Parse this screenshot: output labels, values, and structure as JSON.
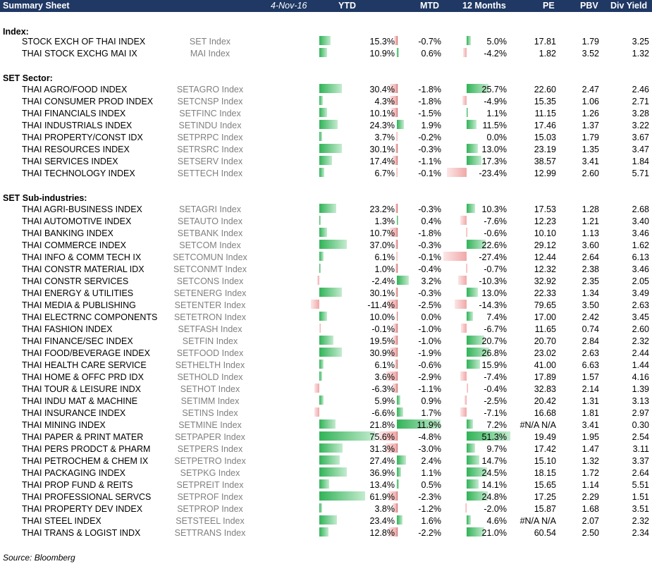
{
  "header": {
    "title": "Summary Sheet",
    "date": "4-Nov-16",
    "columns": [
      "YTD",
      "MTD",
      "12 Months",
      "PE",
      "PBV",
      "Div Yield"
    ]
  },
  "sections": [
    {
      "label": "Index:",
      "rows": [
        {
          "name": "STOCK EXCH OF THAI INDEX",
          "ticker": "SET Index",
          "ytd": 15.3,
          "mtd": -0.7,
          "m12": 5.0,
          "pe": "17.81",
          "pbv": "1.79",
          "dy": "3.25"
        },
        {
          "name": "THAI STOCK EXCHG MAI IX",
          "ticker": "MAI Index",
          "ytd": 10.9,
          "mtd": 0.6,
          "m12": -4.2,
          "pe": "1.82",
          "pbv": "3.52",
          "dy": "1.32"
        }
      ]
    },
    {
      "label": "SET Sector:",
      "rows": [
        {
          "name": "THAI AGRO/FOOD INDEX",
          "ticker": "SETAGRO Index",
          "ytd": 30.4,
          "mtd": -1.8,
          "m12": 25.7,
          "pe": "22.60",
          "pbv": "2.47",
          "dy": "2.46"
        },
        {
          "name": "THAI CONSUMER PROD INDEX",
          "ticker": "SETCNSP Index",
          "ytd": 4.3,
          "mtd": -1.8,
          "m12": -4.9,
          "pe": "15.35",
          "pbv": "1.06",
          "dy": "2.71"
        },
        {
          "name": "THAI FINANCIALS INDEX",
          "ticker": "SETFINC Index",
          "ytd": 10.1,
          "mtd": -1.5,
          "m12": 1.1,
          "pe": "11.15",
          "pbv": "1.26",
          "dy": "3.28"
        },
        {
          "name": "THAI INDUSTRIALS INDEX",
          "ticker": "SETINDU Index",
          "ytd": 24.3,
          "mtd": 1.9,
          "m12": 11.5,
          "pe": "17.46",
          "pbv": "1.37",
          "dy": "3.22"
        },
        {
          "name": "THAI PROPERTY/CONST IDX",
          "ticker": "SETPRPC Index",
          "ytd": 3.7,
          "mtd": -0.2,
          "m12": 0.0,
          "pe": "15.03",
          "pbv": "1.79",
          "dy": "3.67"
        },
        {
          "name": "THAI RESOURCES INDEX",
          "ticker": "SETRSRC Index",
          "ytd": 30.1,
          "mtd": -0.3,
          "m12": 13.0,
          "pe": "23.19",
          "pbv": "1.35",
          "dy": "3.47"
        },
        {
          "name": "THAI SERVICES INDEX",
          "ticker": "SETSERV Index",
          "ytd": 17.4,
          "mtd": -1.1,
          "m12": 17.3,
          "pe": "38.57",
          "pbv": "3.41",
          "dy": "1.84"
        },
        {
          "name": "THAI TECHNOLOGY INDEX",
          "ticker": "SETTECH Index",
          "ytd": 6.7,
          "mtd": -0.1,
          "m12": -23.4,
          "pe": "12.99",
          "pbv": "2.60",
          "dy": "5.71"
        }
      ]
    },
    {
      "label": "SET Sub-industries:",
      "rows": [
        {
          "name": "THAI AGRI-BUSINESS INDEX",
          "ticker": "SETAGRI Index",
          "ytd": 23.2,
          "mtd": -0.3,
          "m12": 10.3,
          "pe": "17.53",
          "pbv": "1.28",
          "dy": "2.68"
        },
        {
          "name": "THAI AUTOMOTIVE INDEX",
          "ticker": "SETAUTO Index",
          "ytd": 1.3,
          "mtd": 0.4,
          "m12": -7.6,
          "pe": "12.23",
          "pbv": "1.21",
          "dy": "3.40"
        },
        {
          "name": "THAI BANKING INDEX",
          "ticker": "SETBANK Index",
          "ytd": 10.7,
          "mtd": -1.8,
          "m12": -0.6,
          "pe": "10.10",
          "pbv": "1.13",
          "dy": "3.46"
        },
        {
          "name": "THAI COMMERCE INDEX",
          "ticker": "SETCOM Index",
          "ytd": 37.0,
          "mtd": -0.3,
          "m12": 22.6,
          "pe": "29.12",
          "pbv": "3.60",
          "dy": "1.62"
        },
        {
          "name": "THAI INFO & COMM TECH IX",
          "ticker": "SETCOMUN Index",
          "ytd": 6.1,
          "mtd": -0.1,
          "m12": -27.4,
          "pe": "12.44",
          "pbv": "2.64",
          "dy": "6.13"
        },
        {
          "name": "THAI CONSTR MATERIAL IDX",
          "ticker": "SETCONMT Index",
          "ytd": 1.0,
          "mtd": -0.4,
          "m12": -0.7,
          "pe": "12.32",
          "pbv": "2.38",
          "dy": "3.46"
        },
        {
          "name": "THAI CONSTR SERVICES",
          "ticker": "SETCONS Index",
          "ytd": -2.4,
          "mtd": 3.2,
          "m12": -10.3,
          "pe": "32.92",
          "pbv": "2.35",
          "dy": "2.05"
        },
        {
          "name": "THAI ENERGY & UTILITIES",
          "ticker": "SETENERG Index",
          "ytd": 30.1,
          "mtd": -0.3,
          "m12": 13.0,
          "pe": "22.33",
          "pbv": "1.34",
          "dy": "3.49"
        },
        {
          "name": "THAI MEDIA & PUBLISHING",
          "ticker": "SETENTER Index",
          "ytd": -11.4,
          "mtd": -2.5,
          "m12": -14.3,
          "pe": "79.65",
          "pbv": "3.50",
          "dy": "2.63"
        },
        {
          "name": "THAI ELECTRNC COMPONENTS",
          "ticker": "SETETRON Index",
          "ytd": 10.0,
          "mtd": 0.0,
          "m12": 7.4,
          "pe": "17.00",
          "pbv": "2.42",
          "dy": "3.45"
        },
        {
          "name": "THAI FASHION INDEX",
          "ticker": "SETFASH Index",
          "ytd": -0.1,
          "mtd": -1.0,
          "m12": -6.7,
          "pe": "11.65",
          "pbv": "0.74",
          "dy": "2.60"
        },
        {
          "name": "THAI FINANCE/SEC INDEX",
          "ticker": "SETFIN Index",
          "ytd": 19.5,
          "mtd": -1.0,
          "m12": 20.7,
          "pe": "20.70",
          "pbv": "2.84",
          "dy": "2.32"
        },
        {
          "name": "THAI FOOD/BEVERAGE INDEX",
          "ticker": "SETFOOD Index",
          "ytd": 30.9,
          "mtd": -1.9,
          "m12": 26.8,
          "pe": "23.02",
          "pbv": "2.63",
          "dy": "2.44"
        },
        {
          "name": "THAI HEALTH CARE SERVICE",
          "ticker": "SETHELTH Index",
          "ytd": 6.1,
          "mtd": -0.6,
          "m12": 15.9,
          "pe": "41.00",
          "pbv": "6.63",
          "dy": "1.44"
        },
        {
          "name": "THAI HOME & OFFC PRD IDX",
          "ticker": "SETHOLD Index",
          "ytd": 3.6,
          "mtd": -2.9,
          "m12": -7.4,
          "pe": "17.89",
          "pbv": "1.57",
          "dy": "4.16"
        },
        {
          "name": "THAI TOUR & LEISURE INDX",
          "ticker": "SETHOT Index",
          "ytd": -6.3,
          "mtd": -1.1,
          "m12": -0.4,
          "pe": "32.83",
          "pbv": "2.14",
          "dy": "1.39"
        },
        {
          "name": "THAI INDU MAT & MACHINE",
          "ticker": "SETIMM Index",
          "ytd": 5.9,
          "mtd": 0.9,
          "m12": -2.5,
          "pe": "20.42",
          "pbv": "1.31",
          "dy": "3.13"
        },
        {
          "name": "THAI INSURANCE INDEX",
          "ticker": "SETINS Index",
          "ytd": -6.6,
          "mtd": 1.7,
          "m12": -7.1,
          "pe": "16.68",
          "pbv": "1.81",
          "dy": "2.97"
        },
        {
          "name": "THAI MINING INDEX",
          "ticker": "SETMINE Index",
          "ytd": 21.8,
          "mtd": 11.9,
          "m12": 7.2,
          "pe": "#N/A N/A",
          "pbv": "3.41",
          "dy": "0.30"
        },
        {
          "name": "THAI PAPER & PRINT MATER",
          "ticker": "SETPAPER Index",
          "ytd": 75.6,
          "mtd": -4.8,
          "m12": 51.3,
          "pe": "19.49",
          "pbv": "1.95",
          "dy": "2.54"
        },
        {
          "name": "THAI PERS PRODCT & PHARM",
          "ticker": "SETPERS Index",
          "ytd": 31.3,
          "mtd": -3.0,
          "m12": 9.7,
          "pe": "17.42",
          "pbv": "1.47",
          "dy": "3.11"
        },
        {
          "name": "THAI PETROCHEM & CHEM IX",
          "ticker": "SETPETRO Index",
          "ytd": 27.4,
          "mtd": 2.4,
          "m12": 14.7,
          "pe": "15.10",
          "pbv": "1.32",
          "dy": "3.37"
        },
        {
          "name": "THAI PACKAGING INDEX",
          "ticker": "SETPKG Index",
          "ytd": 36.9,
          "mtd": 1.1,
          "m12": 24.5,
          "pe": "18.15",
          "pbv": "1.72",
          "dy": "2.64"
        },
        {
          "name": "THAI PROP FUND & REITS",
          "ticker": "SETPREIT Index",
          "ytd": 13.4,
          "mtd": 0.5,
          "m12": 14.1,
          "pe": "15.65",
          "pbv": "1.14",
          "dy": "5.51"
        },
        {
          "name": "THAI PROFESSIONAL SERVCS",
          "ticker": "SETPROF Index",
          "ytd": 61.9,
          "mtd": -2.3,
          "m12": 24.8,
          "pe": "17.25",
          "pbv": "2.29",
          "dy": "1.51"
        },
        {
          "name": "THAI PROPERTY DEV INDEX",
          "ticker": "SETPROP Index",
          "ytd": 3.8,
          "mtd": -1.2,
          "m12": -2.0,
          "pe": "15.87",
          "pbv": "1.68",
          "dy": "3.51"
        },
        {
          "name": "THAI STEEL INDEX",
          "ticker": "SETSTEEL Index",
          "ytd": 23.4,
          "mtd": 1.6,
          "m12": 4.6,
          "pe": "#N/A N/A",
          "pbv": "2.07",
          "dy": "2.32"
        },
        {
          "name": "THAI TRANS & LOGIST INDX",
          "ticker": "SETTRANS Index",
          "ytd": 12.8,
          "mtd": -2.2,
          "m12": 21.0,
          "pe": "60.54",
          "pbv": "2.50",
          "dy": "2.34"
        }
      ]
    }
  ],
  "source": "Source: Bloomberg",
  "colors": {
    "header_bg": "#1f3864",
    "positive_bar": "#31b357",
    "negative_bar": "#f0a8a8",
    "ticker_text": "#808080"
  }
}
